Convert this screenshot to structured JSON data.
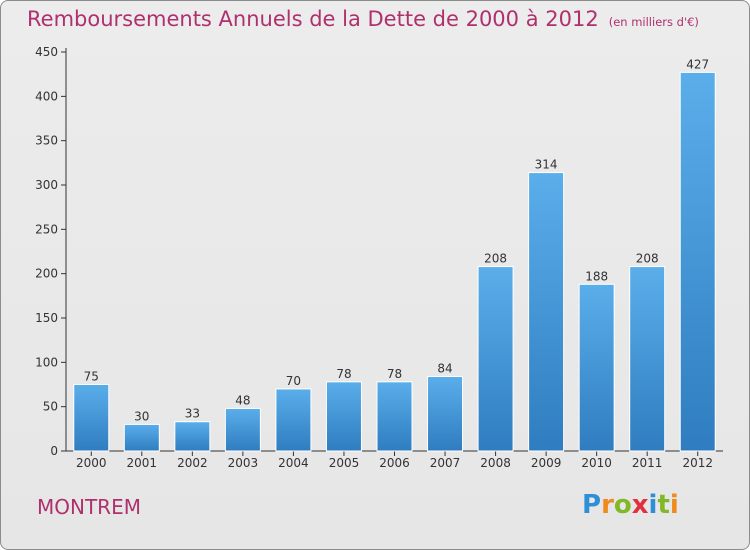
{
  "title": "Remboursements Annuels de la Dette de 2000 à 2012",
  "unit": "(en milliers d'€)",
  "commune": "MONTREM",
  "logo": {
    "letters": [
      "P",
      "r",
      "o",
      "x",
      "i",
      "t",
      "i"
    ],
    "colors": [
      "#2f8fd6",
      "#f08a1c",
      "#80b828",
      "#e0313c",
      "#2f8fd6",
      "#80b828",
      "#f08a1c"
    ]
  },
  "colors": {
    "bar_light": "#5aaeea",
    "bar_dark": "#2f7dc0",
    "title": "#b0306e"
  },
  "chart_data": {
    "type": "bar",
    "categories": [
      "2000",
      "2001",
      "2002",
      "2003",
      "2004",
      "2005",
      "2006",
      "2007",
      "2008",
      "2009",
      "2010",
      "2011",
      "2012"
    ],
    "values": [
      75,
      30,
      33,
      48,
      70,
      78,
      78,
      84,
      208,
      314,
      188,
      208,
      427
    ],
    "ylim": [
      0,
      450
    ],
    "yticks": [
      0,
      50,
      100,
      150,
      200,
      250,
      300,
      350,
      400,
      450
    ],
    "grid": false,
    "legend": "none"
  }
}
